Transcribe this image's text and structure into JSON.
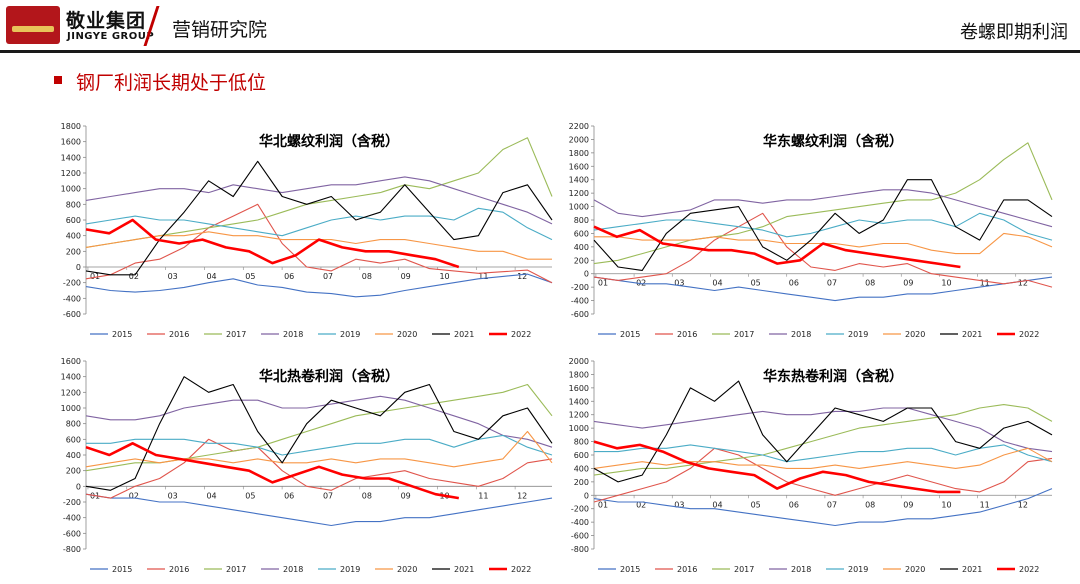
{
  "header": {
    "brand_cn": "敬业集团",
    "brand_en": "JINGYE GROUP",
    "department": "营销研究院",
    "topic": "卷螺即期利润"
  },
  "section": {
    "title": "钢厂利润长期处于低位"
  },
  "colors": {
    "2015": "#4472c4",
    "2016": "#e0554c",
    "2017": "#9bbb59",
    "2018": "#8064a2",
    "2019": "#4bacc6",
    "2020": "#f79646",
    "2021": "#000000",
    "2022": "#ff0000"
  },
  "chart_data": [
    {
      "type": "line",
      "title": "华北螺纹利润（含税）",
      "ylim": [
        -600,
        1800
      ],
      "yticks": [
        -600,
        -400,
        -200,
        0,
        200,
        400,
        600,
        800,
        1000,
        1200,
        1400,
        1600,
        1800
      ],
      "xlabels": [
        "01",
        "02",
        "03",
        "04",
        "05",
        "06",
        "07",
        "08",
        "09",
        "10",
        "11",
        "12"
      ],
      "series": [
        {
          "name": "2015",
          "values": [
            -250,
            -300,
            -320,
            -300,
            -260,
            -200,
            -150,
            -230,
            -260,
            -320,
            -340,
            -380,
            -360,
            -300,
            -250,
            -200,
            -150,
            -120,
            -90,
            -200
          ]
        },
        {
          "name": "2016",
          "values": [
            -150,
            -100,
            50,
            100,
            250,
            500,
            650,
            800,
            300,
            0,
            -50,
            100,
            50,
            100,
            -20,
            -50,
            -80,
            -60,
            -40,
            -200
          ]
        },
        {
          "name": "2017",
          "values": [
            250,
            300,
            350,
            400,
            450,
            500,
            550,
            600,
            700,
            800,
            850,
            900,
            950,
            1050,
            1000,
            1100,
            1200,
            1500,
            1650,
            900
          ]
        },
        {
          "name": "2018",
          "values": [
            850,
            900,
            950,
            1000,
            1000,
            950,
            1050,
            1000,
            950,
            1000,
            1050,
            1050,
            1100,
            1150,
            1100,
            1000,
            900,
            800,
            700,
            550
          ]
        },
        {
          "name": "2019",
          "values": [
            550,
            600,
            650,
            600,
            600,
            550,
            500,
            450,
            400,
            500,
            600,
            650,
            600,
            650,
            650,
            600,
            750,
            700,
            500,
            350
          ]
        },
        {
          "name": "2020",
          "values": [
            250,
            300,
            350,
            400,
            400,
            450,
            400,
            400,
            350,
            350,
            350,
            300,
            350,
            350,
            300,
            250,
            200,
            200,
            100,
            100
          ]
        },
        {
          "name": "2021",
          "values": [
            -50,
            -100,
            -100,
            350,
            700,
            1100,
            900,
            1350,
            900,
            800,
            900,
            600,
            700,
            1050,
            700,
            350,
            400,
            950,
            1050,
            600
          ]
        },
        {
          "name": "2022",
          "values": [
            480,
            430,
            600,
            350,
            300,
            350,
            250,
            200,
            50,
            150,
            350,
            250,
            200,
            200,
            150,
            100,
            0
          ]
        }
      ],
      "legend": [
        "2015",
        "2016",
        "2017",
        "2018",
        "2019",
        "2020",
        "2021",
        "2022"
      ]
    },
    {
      "type": "line",
      "title": "华东螺纹利润（含税）",
      "ylim": [
        -600,
        2200
      ],
      "yticks": [
        -600,
        -400,
        -200,
        0,
        200,
        400,
        600,
        800,
        1000,
        1200,
        1400,
        1600,
        1800,
        2000,
        2200
      ],
      "xlabels": [
        "01",
        "02",
        "03",
        "04",
        "05",
        "06",
        "07",
        "08",
        "09",
        "10",
        "11",
        "12"
      ],
      "series": [
        {
          "name": "2015",
          "values": [
            -50,
            -100,
            -150,
            -150,
            -200,
            -250,
            -200,
            -250,
            -300,
            -350,
            -400,
            -350,
            -350,
            -300,
            -300,
            -250,
            -200,
            -150,
            -100,
            -50
          ]
        },
        {
          "name": "2016",
          "values": [
            -50,
            -100,
            -50,
            0,
            200,
            500,
            700,
            900,
            400,
            100,
            50,
            150,
            100,
            150,
            0,
            -50,
            -100,
            -150,
            -100,
            -200
          ]
        },
        {
          "name": "2017",
          "values": [
            150,
            200,
            300,
            400,
            500,
            550,
            600,
            700,
            850,
            900,
            950,
            1000,
            1050,
            1100,
            1100,
            1200,
            1400,
            1700,
            1950,
            1100
          ]
        },
        {
          "name": "2018",
          "values": [
            1100,
            900,
            850,
            900,
            950,
            1100,
            1100,
            1050,
            1100,
            1100,
            1150,
            1200,
            1250,
            1250,
            1200,
            1100,
            1000,
            900,
            800,
            700
          ]
        },
        {
          "name": "2019",
          "values": [
            650,
            700,
            750,
            800,
            800,
            750,
            700,
            650,
            550,
            600,
            700,
            800,
            750,
            800,
            800,
            700,
            900,
            800,
            600,
            500
          ]
        },
        {
          "name": "2020",
          "values": [
            550,
            550,
            500,
            500,
            500,
            550,
            500,
            500,
            450,
            450,
            450,
            400,
            450,
            450,
            350,
            300,
            300,
            600,
            550,
            400
          ]
        },
        {
          "name": "2021",
          "values": [
            500,
            100,
            50,
            600,
            900,
            950,
            1000,
            400,
            200,
            500,
            900,
            600,
            800,
            1400,
            1400,
            700,
            500,
            1100,
            1100,
            850
          ]
        },
        {
          "name": "2022",
          "values": [
            700,
            550,
            650,
            450,
            400,
            350,
            350,
            300,
            150,
            200,
            450,
            350,
            300,
            250,
            200,
            150,
            100
          ]
        }
      ],
      "legend": [
        "2015",
        "2016",
        "2017",
        "2018",
        "2019",
        "2020",
        "2021",
        "2022"
      ]
    },
    {
      "type": "line",
      "title": "华北热卷利润（含税）",
      "ylim": [
        -800,
        1600
      ],
      "yticks": [
        -800,
        -600,
        -400,
        -200,
        0,
        200,
        400,
        600,
        800,
        1000,
        1200,
        1400,
        1600
      ],
      "xlabels": [
        "01",
        "02",
        "03",
        "04",
        "05",
        "06",
        "07",
        "08",
        "09",
        "10",
        "11",
        "12"
      ],
      "series": [
        {
          "name": "2015",
          "values": [
            -100,
            -150,
            -150,
            -200,
            -200,
            -250,
            -300,
            -350,
            -400,
            -450,
            -500,
            -450,
            -450,
            -400,
            -400,
            -350,
            -300,
            -250,
            -200,
            -150
          ]
        },
        {
          "name": "2016",
          "values": [
            -100,
            -150,
            0,
            100,
            300,
            600,
            450,
            500,
            200,
            0,
            -50,
            100,
            150,
            200,
            100,
            50,
            0,
            100,
            300,
            350
          ]
        },
        {
          "name": "2017",
          "values": [
            200,
            250,
            300,
            300,
            350,
            400,
            450,
            500,
            600,
            700,
            800,
            900,
            950,
            1000,
            1050,
            1100,
            1150,
            1200,
            1300,
            900
          ]
        },
        {
          "name": "2018",
          "values": [
            900,
            850,
            850,
            900,
            1000,
            1050,
            1100,
            1100,
            1000,
            1000,
            1050,
            1100,
            1150,
            1100,
            1000,
            900,
            800,
            650,
            600,
            500
          ]
        },
        {
          "name": "2019",
          "values": [
            550,
            550,
            600,
            600,
            600,
            550,
            550,
            500,
            400,
            450,
            500,
            550,
            550,
            600,
            600,
            500,
            600,
            650,
            500,
            400
          ]
        },
        {
          "name": "2020",
          "values": [
            250,
            300,
            350,
            300,
            350,
            350,
            300,
            350,
            300,
            300,
            350,
            300,
            350,
            350,
            300,
            250,
            300,
            350,
            700,
            300
          ]
        },
        {
          "name": "2021",
          "values": [
            0,
            -50,
            100,
            800,
            1400,
            1200,
            1300,
            700,
            300,
            800,
            1100,
            1000,
            900,
            1200,
            1300,
            700,
            600,
            900,
            1000,
            550
          ]
        },
        {
          "name": "2022",
          "values": [
            500,
            400,
            550,
            400,
            350,
            300,
            250,
            200,
            50,
            150,
            250,
            150,
            100,
            100,
            0,
            -100,
            -150
          ]
        }
      ],
      "legend": [
        "2015",
        "2016",
        "2017",
        "2018",
        "2019",
        "2020",
        "2021",
        "2022"
      ]
    },
    {
      "type": "line",
      "title": "华东热卷利润（含税）",
      "ylim": [
        -800,
        2000
      ],
      "yticks": [
        -800,
        -600,
        -400,
        -200,
        0,
        200,
        400,
        600,
        800,
        1000,
        1200,
        1400,
        1600,
        1800,
        2000
      ],
      "xlabels": [
        "01",
        "02",
        "03",
        "04",
        "05",
        "06",
        "07",
        "08",
        "09",
        "10",
        "11",
        "12"
      ],
      "series": [
        {
          "name": "2015",
          "values": [
            -50,
            -100,
            -100,
            -150,
            -200,
            -200,
            -250,
            -300,
            -350,
            -400,
            -450,
            -400,
            -400,
            -350,
            -350,
            -300,
            -250,
            -150,
            -50,
            100
          ]
        },
        {
          "name": "2016",
          "values": [
            -100,
            0,
            100,
            200,
            400,
            700,
            600,
            400,
            200,
            100,
            0,
            100,
            200,
            300,
            200,
            100,
            50,
            200,
            500,
            550
          ]
        },
        {
          "name": "2017",
          "values": [
            300,
            350,
            400,
            400,
            450,
            500,
            550,
            600,
            700,
            800,
            900,
            1000,
            1050,
            1100,
            1150,
            1200,
            1300,
            1350,
            1300,
            1100
          ]
        },
        {
          "name": "2018",
          "values": [
            1100,
            1050,
            1000,
            1050,
            1100,
            1150,
            1200,
            1250,
            1200,
            1200,
            1250,
            1250,
            1300,
            1300,
            1200,
            1100,
            1000,
            800,
            700,
            650
          ]
        },
        {
          "name": "2019",
          "values": [
            650,
            650,
            700,
            700,
            750,
            700,
            650,
            600,
            500,
            550,
            600,
            650,
            650,
            700,
            700,
            600,
            700,
            750,
            600,
            500
          ]
        },
        {
          "name": "2020",
          "values": [
            400,
            450,
            500,
            450,
            500,
            500,
            450,
            450,
            400,
            400,
            450,
            400,
            450,
            500,
            450,
            400,
            450,
            600,
            700,
            500
          ]
        },
        {
          "name": "2021",
          "values": [
            400,
            200,
            300,
            900,
            1600,
            1400,
            1700,
            900,
            500,
            900,
            1300,
            1200,
            1100,
            1300,
            1300,
            800,
            700,
            1000,
            1100,
            900
          ]
        },
        {
          "name": "2022",
          "values": [
            800,
            700,
            750,
            650,
            500,
            400,
            350,
            300,
            100,
            250,
            350,
            300,
            200,
            150,
            100,
            50,
            50
          ]
        }
      ],
      "legend": [
        "2015",
        "2016",
        "2017",
        "2018",
        "2019",
        "2020",
        "2021",
        "2022"
      ]
    }
  ]
}
